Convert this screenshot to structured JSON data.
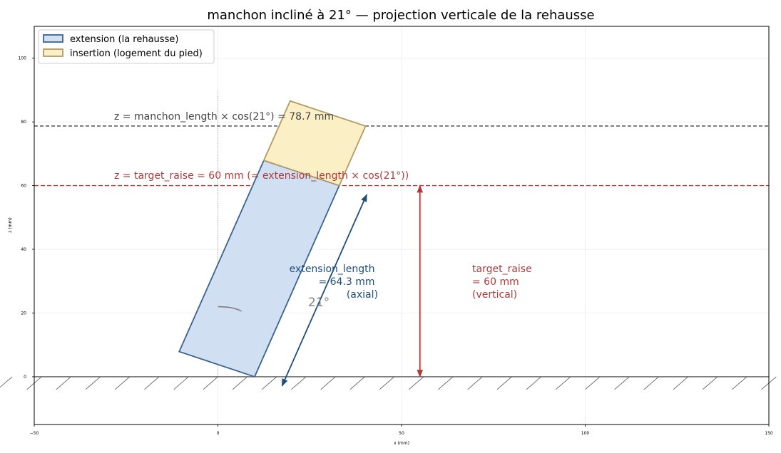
{
  "title": "manchon incliné à 21° — projection verticale de la rehausse",
  "axes": {
    "xlabel": "x (mm)",
    "ylabel": "z (mm)",
    "xlim": [
      -50,
      150
    ],
    "ylim": [
      -15,
      110
    ],
    "xticks": [
      -50,
      0,
      50,
      100,
      150
    ],
    "yticks": [
      0,
      20,
      40,
      60,
      80,
      100
    ],
    "grid": true
  },
  "legend": {
    "position": "top-left",
    "items": [
      {
        "label": "extension (la rehausse)",
        "fill": "#d0dff1",
        "stroke": "#3a6391"
      },
      {
        "label": "insertion (logement du pied)",
        "fill": "#fbefc6",
        "stroke": "#b39a65"
      }
    ]
  },
  "geometry": {
    "angle_deg": 21,
    "width_mm": 22,
    "extension_length_mm": 64.3,
    "manchon_length_mm": 84.3,
    "target_raise_mm": 60,
    "manchon_projection_mm": 78.7
  },
  "annotations": {
    "manchon_line": "z = manchon_length × cos(21°) = 78.7 mm",
    "target_line": "z = target_raise = 60 mm (= extension_length × cos(21°))",
    "extension_label_1": "extension_length",
    "extension_label_2": "= 64.3 mm",
    "extension_label_3": "(axial)",
    "target_label_1": "target_raise",
    "target_label_2": "= 60 mm",
    "target_label_3": "(vertical)",
    "angle_label": "21°"
  },
  "colors": {
    "extension_fill": "#d0dff1",
    "extension_stroke": "#3a6391",
    "insertion_fill": "#fbefc6",
    "insertion_stroke": "#b39a65",
    "target": "#b03a3a",
    "axial": "#1f4e79",
    "manchon_line": "#444444",
    "angle": "#808080",
    "ground": "#555555"
  }
}
